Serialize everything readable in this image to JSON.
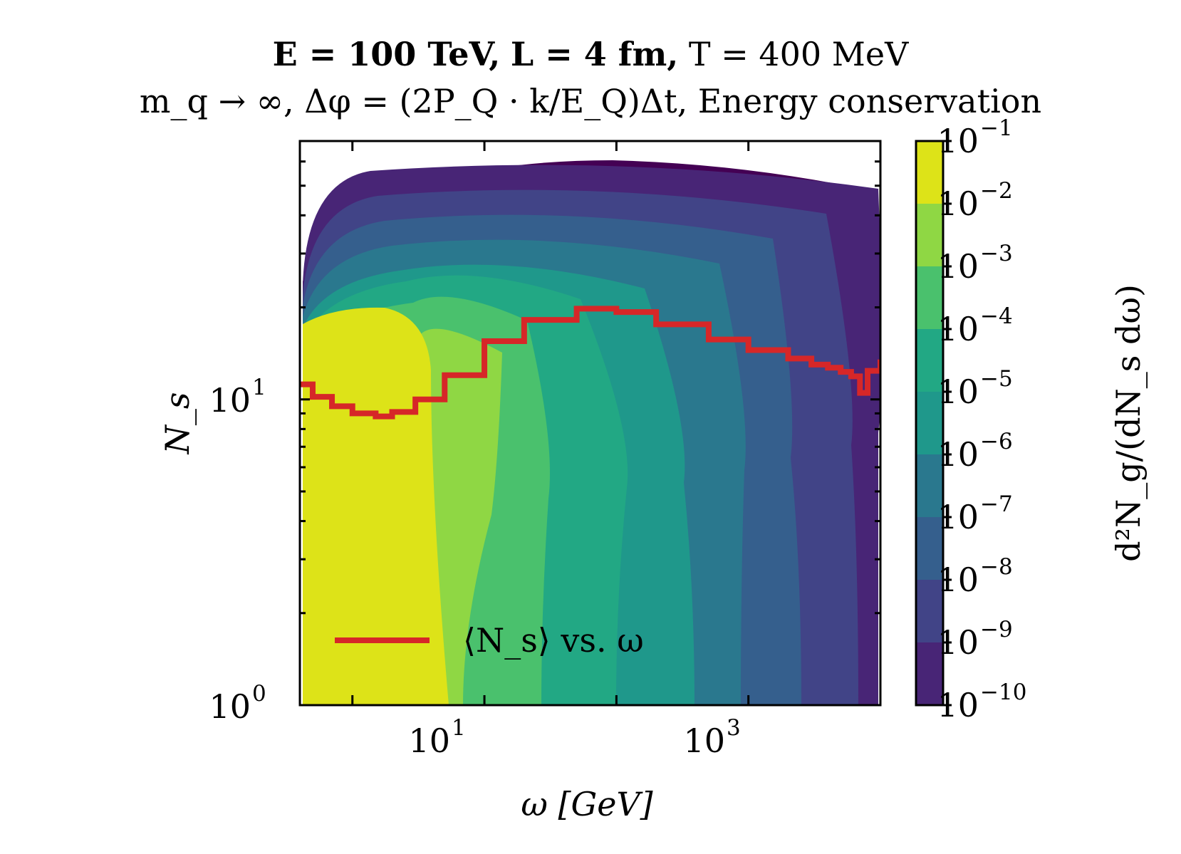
{
  "title_line1_parts": [
    "E = 100 TeV,",
    "L = 4 fm,",
    "T = 400 MeV"
  ],
  "title_line2": "m_q → ∞,  Δφ = (2P_Q · k/E_Q)Δt,  Energy conservation",
  "chart_data": {
    "type": "heatmap",
    "title": "E = 100 TeV,  L = 4 fm,  T = 400 MeV",
    "subtitle": "m_q → ∞,  Δφ = (2P_Q · k/E_Q)Δt,  Energy conservation",
    "xlabel": "ω [GeV]",
    "ylabel": "N_s",
    "x_scale": "log",
    "y_scale": "log",
    "xlim": [
      0.4,
      10000
    ],
    "ylim": [
      1,
      70
    ],
    "x_ticks": [
      {
        "base": "10",
        "exp": "1",
        "value": 10
      },
      {
        "base": "10",
        "exp": "3",
        "value": 1000
      }
    ],
    "y_ticks": [
      {
        "base": "10",
        "exp": "0",
        "value": 1
      },
      {
        "base": "10",
        "exp": "1",
        "value": 10
      }
    ],
    "colorbar": {
      "label": "d²N_g/(dN_s dω)",
      "scale": "log",
      "ticks": [
        {
          "base": "10",
          "exp": "−1"
        },
        {
          "base": "10",
          "exp": "−2"
        },
        {
          "base": "10",
          "exp": "−3"
        },
        {
          "base": "10",
          "exp": "−4"
        },
        {
          "base": "10",
          "exp": "−5"
        },
        {
          "base": "10",
          "exp": "−6"
        },
        {
          "base": "10",
          "exp": "−7"
        },
        {
          "base": "10",
          "exp": "−8"
        },
        {
          "base": "10",
          "exp": "−9"
        },
        {
          "base": "10",
          "exp": "−10"
        }
      ],
      "levels_colors": [
        "#dde318",
        "#8fd744",
        "#4ac16d",
        "#22a884",
        "#1f988b",
        "#2a788e",
        "#355f8d",
        "#414487",
        "#482576",
        "#440154"
      ]
    },
    "series": [
      {
        "name": "⟨N_s⟩ vs. ω",
        "color": "#d62728",
        "x": [
          0.4,
          0.5,
          0.7,
          1.0,
          1.5,
          2.0,
          3.0,
          5.0,
          10,
          20,
          50,
          100,
          200,
          500,
          1000,
          2000,
          3000,
          4000,
          5000,
          6000,
          7000,
          8000,
          10000
        ],
        "y": [
          11.2,
          10.2,
          9.5,
          9.0,
          8.8,
          9.1,
          10.0,
          12.0,
          15.5,
          18.2,
          19.8,
          19.3,
          17.6,
          15.7,
          14.5,
          13.6,
          13.0,
          12.7,
          12.3,
          11.9,
          10.5,
          12.4,
          13.5
        ]
      }
    ],
    "legend": {
      "position": "lower-left",
      "entries": [
        "⟨N_s⟩ vs. ω"
      ]
    },
    "grid": false
  }
}
